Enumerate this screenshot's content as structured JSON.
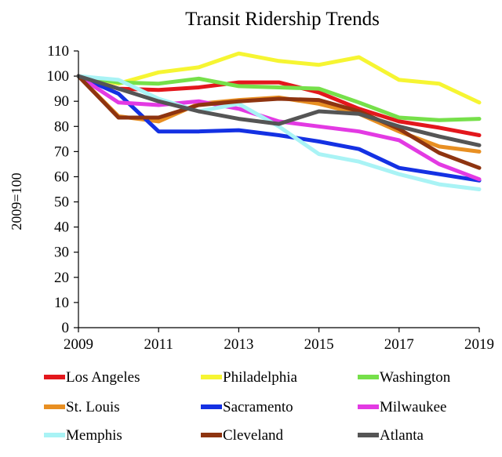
{
  "chart_data": {
    "type": "line",
    "title": "Transit Ridership Trends",
    "xlabel": "",
    "ylabel": "2009=100",
    "x": [
      2009,
      2010,
      2011,
      2012,
      2013,
      2014,
      2015,
      2016,
      2017,
      2018,
      2019
    ],
    "xticks": [
      "2009",
      "2011",
      "2013",
      "2015",
      "2017",
      "2019"
    ],
    "xlim": [
      2009,
      2019
    ],
    "yticks": [
      "0",
      "10",
      "20",
      "30",
      "40",
      "50",
      "60",
      "70",
      "80",
      "90",
      "100",
      "110"
    ],
    "ylim": [
      0,
      110
    ],
    "grid": false,
    "legend_position": "bottom",
    "series": [
      {
        "name": "Los Angeles",
        "color": "#e3171c",
        "values": [
          100,
          95,
          94.5,
          95.5,
          97.5,
          97.5,
          93.5,
          87,
          82,
          79.5,
          76.5
        ]
      },
      {
        "name": "Philadelphia",
        "color": "#f6f532",
        "values": [
          100,
          97,
          101.5,
          103.5,
          109,
          106,
          104.5,
          107.5,
          98.5,
          97,
          89.5
        ]
      },
      {
        "name": "Washington",
        "color": "#76e04a",
        "values": [
          100,
          97.5,
          97,
          99,
          96,
          95.5,
          95,
          89.5,
          83.5,
          82.5,
          83
        ]
      },
      {
        "name": "St. Louis",
        "color": "#e88f22",
        "values": [
          100,
          84,
          82,
          89,
          90.5,
          91.5,
          89,
          85,
          78,
          72,
          70
        ]
      },
      {
        "name": "Sacramento",
        "color": "#1431e3",
        "values": [
          100,
          93,
          78,
          78,
          78.5,
          76.5,
          74,
          71,
          63.5,
          61,
          58.5
        ]
      },
      {
        "name": "Milwaukee",
        "color": "#e33ae3",
        "values": [
          100,
          89.5,
          88.5,
          90,
          87,
          82,
          80,
          78,
          74.5,
          65,
          59
        ]
      },
      {
        "name": "Memphis",
        "color": "#a9f3f5",
        "values": [
          100,
          98.5,
          91,
          86,
          89,
          80,
          69,
          66,
          61,
          57,
          55
        ]
      },
      {
        "name": "Cleveland",
        "color": "#8e3410",
        "values": [
          100,
          83.5,
          83.5,
          88.5,
          90,
          91,
          90.5,
          86,
          79,
          69.5,
          63.5
        ]
      },
      {
        "name": "Atlanta",
        "color": "#555555",
        "values": [
          100,
          95,
          90,
          86,
          83,
          81,
          86,
          85,
          80,
          76,
          72.5
        ]
      }
    ]
  }
}
